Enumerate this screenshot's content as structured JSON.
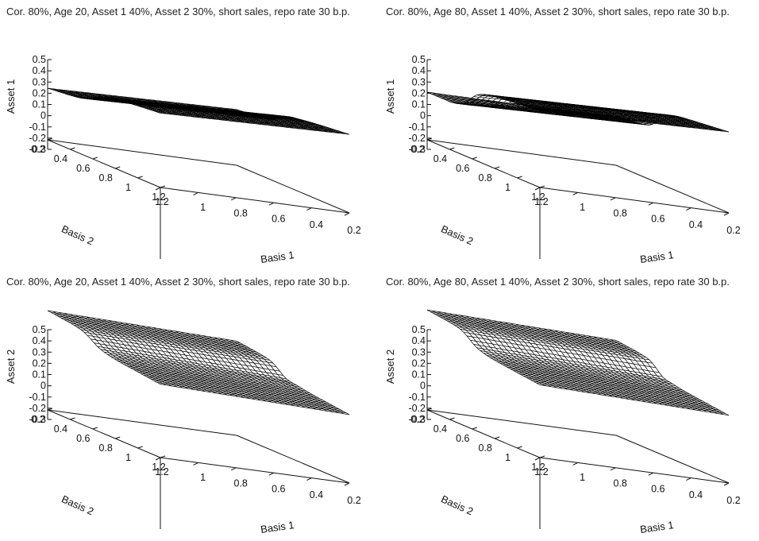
{
  "chart_data": [
    {
      "type": "surface",
      "title": "Cor. 80%, Age 20, Asset 1 40%, Asset 2 30%, short sales, repo rate 30 b.p.",
      "zlabel": "Asset 1",
      "xlabel": "Basis 1",
      "ylabel": "Basis 2",
      "z_ticks": [
        "0.5",
        "0.4",
        "0.3",
        "0.2",
        "0.1",
        "0",
        "-0.1",
        "-0.2",
        "-0.3"
      ],
      "x_ticks": [
        "1.2",
        "1",
        "0.8",
        "0.6",
        "0.4",
        "0.2"
      ],
      "y_ticks": [
        "0.2",
        "0.4",
        "0.6",
        "0.8",
        "1",
        "1.2"
      ],
      "xlim": [
        1.2,
        0.2
      ],
      "ylim": [
        0.2,
        1.2
      ],
      "zlim": [
        -0.3,
        0.5
      ],
      "surface": {
        "base": -0.05,
        "slope_x": 0.1,
        "slope_y": 0.28,
        "step_center": 0.64,
        "step_width": 0.055,
        "step_height": 0.16,
        "spike": 0.09
      },
      "grid": "wireframe"
    },
    {
      "type": "surface",
      "title": "Cor. 80%, Age 80, Asset 1 40%, Asset 2 30%, short sales, repo rate 30 b.p.",
      "zlabel": "Asset 1",
      "xlabel": "Basis 1",
      "ylabel": "Basis 2",
      "z_ticks": [
        "0.5",
        "0.4",
        "0.3",
        "0.2",
        "0.1",
        "0",
        "-0.1",
        "-0.2",
        "-0.3"
      ],
      "x_ticks": [
        "1.2",
        "1",
        "0.8",
        "0.6",
        "0.4",
        "0.2"
      ],
      "y_ticks": [
        "0.2",
        "0.4",
        "0.6",
        "0.8",
        "1",
        "1.2"
      ],
      "xlim": [
        1.2,
        0.2
      ],
      "ylim": [
        0.2,
        1.2
      ],
      "zlim": [
        -0.3,
        0.5
      ],
      "surface": {
        "base": -0.08,
        "slope_x": 0.1,
        "slope_y": 0.3,
        "step_center": 0.6,
        "step_width": 0.04,
        "step_height": 0.28,
        "spike": 0.12
      },
      "grid": "wireframe"
    },
    {
      "type": "surface",
      "title": "Cor. 80%, Age 20, Asset 1 40%, Asset 2 30%, short sales, repo rate 30 b.p.",
      "zlabel": "Asset 2",
      "xlabel": "Basis 1",
      "ylabel": "Basis 2",
      "z_ticks": [
        "0.5",
        "0.4",
        "0.3",
        "0.2",
        "0.1",
        "0",
        "-0.1",
        "-0.2",
        "-0.3"
      ],
      "x_ticks": [
        "1.2",
        "1",
        "0.8",
        "0.6",
        "0.4",
        "0.2"
      ],
      "y_ticks": [
        "0.2",
        "0.4",
        "0.6",
        "0.8",
        "1",
        "1.2"
      ],
      "xlim": [
        1.2,
        0.2
      ],
      "ylim": [
        0.2,
        1.2
      ],
      "zlim": [
        -0.3,
        0.5
      ],
      "surface": {
        "base": 0.22,
        "slope_x": -0.12,
        "slope_y": -0.32,
        "step_center": 0.62,
        "step_width": 0.05,
        "step_height": -0.18,
        "spike": 0.1
      },
      "grid": "wireframe"
    },
    {
      "type": "surface",
      "title": "Cor. 80%, Age 80, Asset 1 40%, Asset 2 30%, short sales, repo rate 30 b.p.",
      "zlabel": "Asset 2",
      "xlabel": "Basis 1",
      "ylabel": "Basis 2",
      "z_ticks": [
        "0.5",
        "0.4",
        "0.3",
        "0.2",
        "0.1",
        "0",
        "-0.1",
        "-0.2",
        "-0.3"
      ],
      "x_ticks": [
        "1.2",
        "1",
        "0.8",
        "0.6",
        "0.4",
        "0.2"
      ],
      "y_ticks": [
        "0.2",
        "0.4",
        "0.6",
        "0.8",
        "1",
        "1.2"
      ],
      "xlim": [
        1.2,
        0.2
      ],
      "ylim": [
        0.2,
        1.2
      ],
      "zlim": [
        -0.3,
        0.5
      ],
      "surface": {
        "base": 0.22,
        "slope_x": -0.12,
        "slope_y": -0.32,
        "step_center": 0.6,
        "step_width": 0.045,
        "step_height": -0.2,
        "spike": 0.1
      },
      "grid": "wireframe"
    }
  ]
}
